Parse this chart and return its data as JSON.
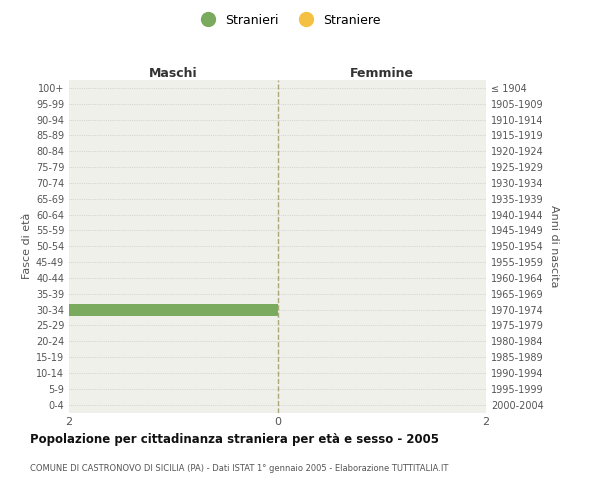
{
  "age_groups": [
    "100+",
    "95-99",
    "90-94",
    "85-89",
    "80-84",
    "75-79",
    "70-74",
    "65-69",
    "60-64",
    "55-59",
    "50-54",
    "45-49",
    "40-44",
    "35-39",
    "30-34",
    "25-29",
    "20-24",
    "15-19",
    "10-14",
    "5-9",
    "0-4"
  ],
  "birth_years": [
    "≤ 1904",
    "1905-1909",
    "1910-1914",
    "1915-1919",
    "1920-1924",
    "1925-1929",
    "1930-1934",
    "1935-1939",
    "1940-1944",
    "1945-1949",
    "1950-1954",
    "1955-1959",
    "1960-1964",
    "1965-1969",
    "1970-1974",
    "1975-1979",
    "1980-1984",
    "1985-1989",
    "1990-1994",
    "1995-1999",
    "2000-2004"
  ],
  "males_stranieri": [
    0,
    0,
    0,
    0,
    0,
    0,
    0,
    0,
    0,
    0,
    0,
    0,
    0,
    0,
    2,
    0,
    0,
    0,
    0,
    0,
    0
  ],
  "males_straniere": [
    0,
    0,
    0,
    0,
    0,
    0,
    0,
    0,
    0,
    0,
    0,
    0,
    0,
    0,
    0,
    0,
    0,
    0,
    0,
    0,
    0
  ],
  "females_stranieri": [
    0,
    0,
    0,
    0,
    0,
    0,
    0,
    0,
    0,
    0,
    0,
    0,
    0,
    0,
    0,
    0,
    0,
    0,
    0,
    0,
    0
  ],
  "females_straniere": [
    0,
    0,
    0,
    0,
    0,
    0,
    0,
    0,
    0,
    0,
    0,
    0,
    0,
    0,
    0,
    0,
    0,
    0,
    0,
    0,
    0
  ],
  "color_stranieri": "#7aaa5e",
  "color_straniere": "#f5c142",
  "xlim": [
    -2,
    2
  ],
  "xticks": [
    -2,
    0,
    2
  ],
  "title_main": "Popolazione per cittadinanza straniera per età e sesso - 2005",
  "title_sub": "COMUNE DI CASTRONOVO DI SICILIA (PA) - Dati ISTAT 1° gennaio 2005 - Elaborazione TUTTITALIA.IT",
  "legend_stranieri": "Stranieri",
  "legend_straniere": "Straniere",
  "label_maschi": "Maschi",
  "label_femmine": "Femmine",
  "ylabel_left": "Fasce di età",
  "ylabel_right": "Anni di nascita",
  "background_color": "#f0f0eb"
}
